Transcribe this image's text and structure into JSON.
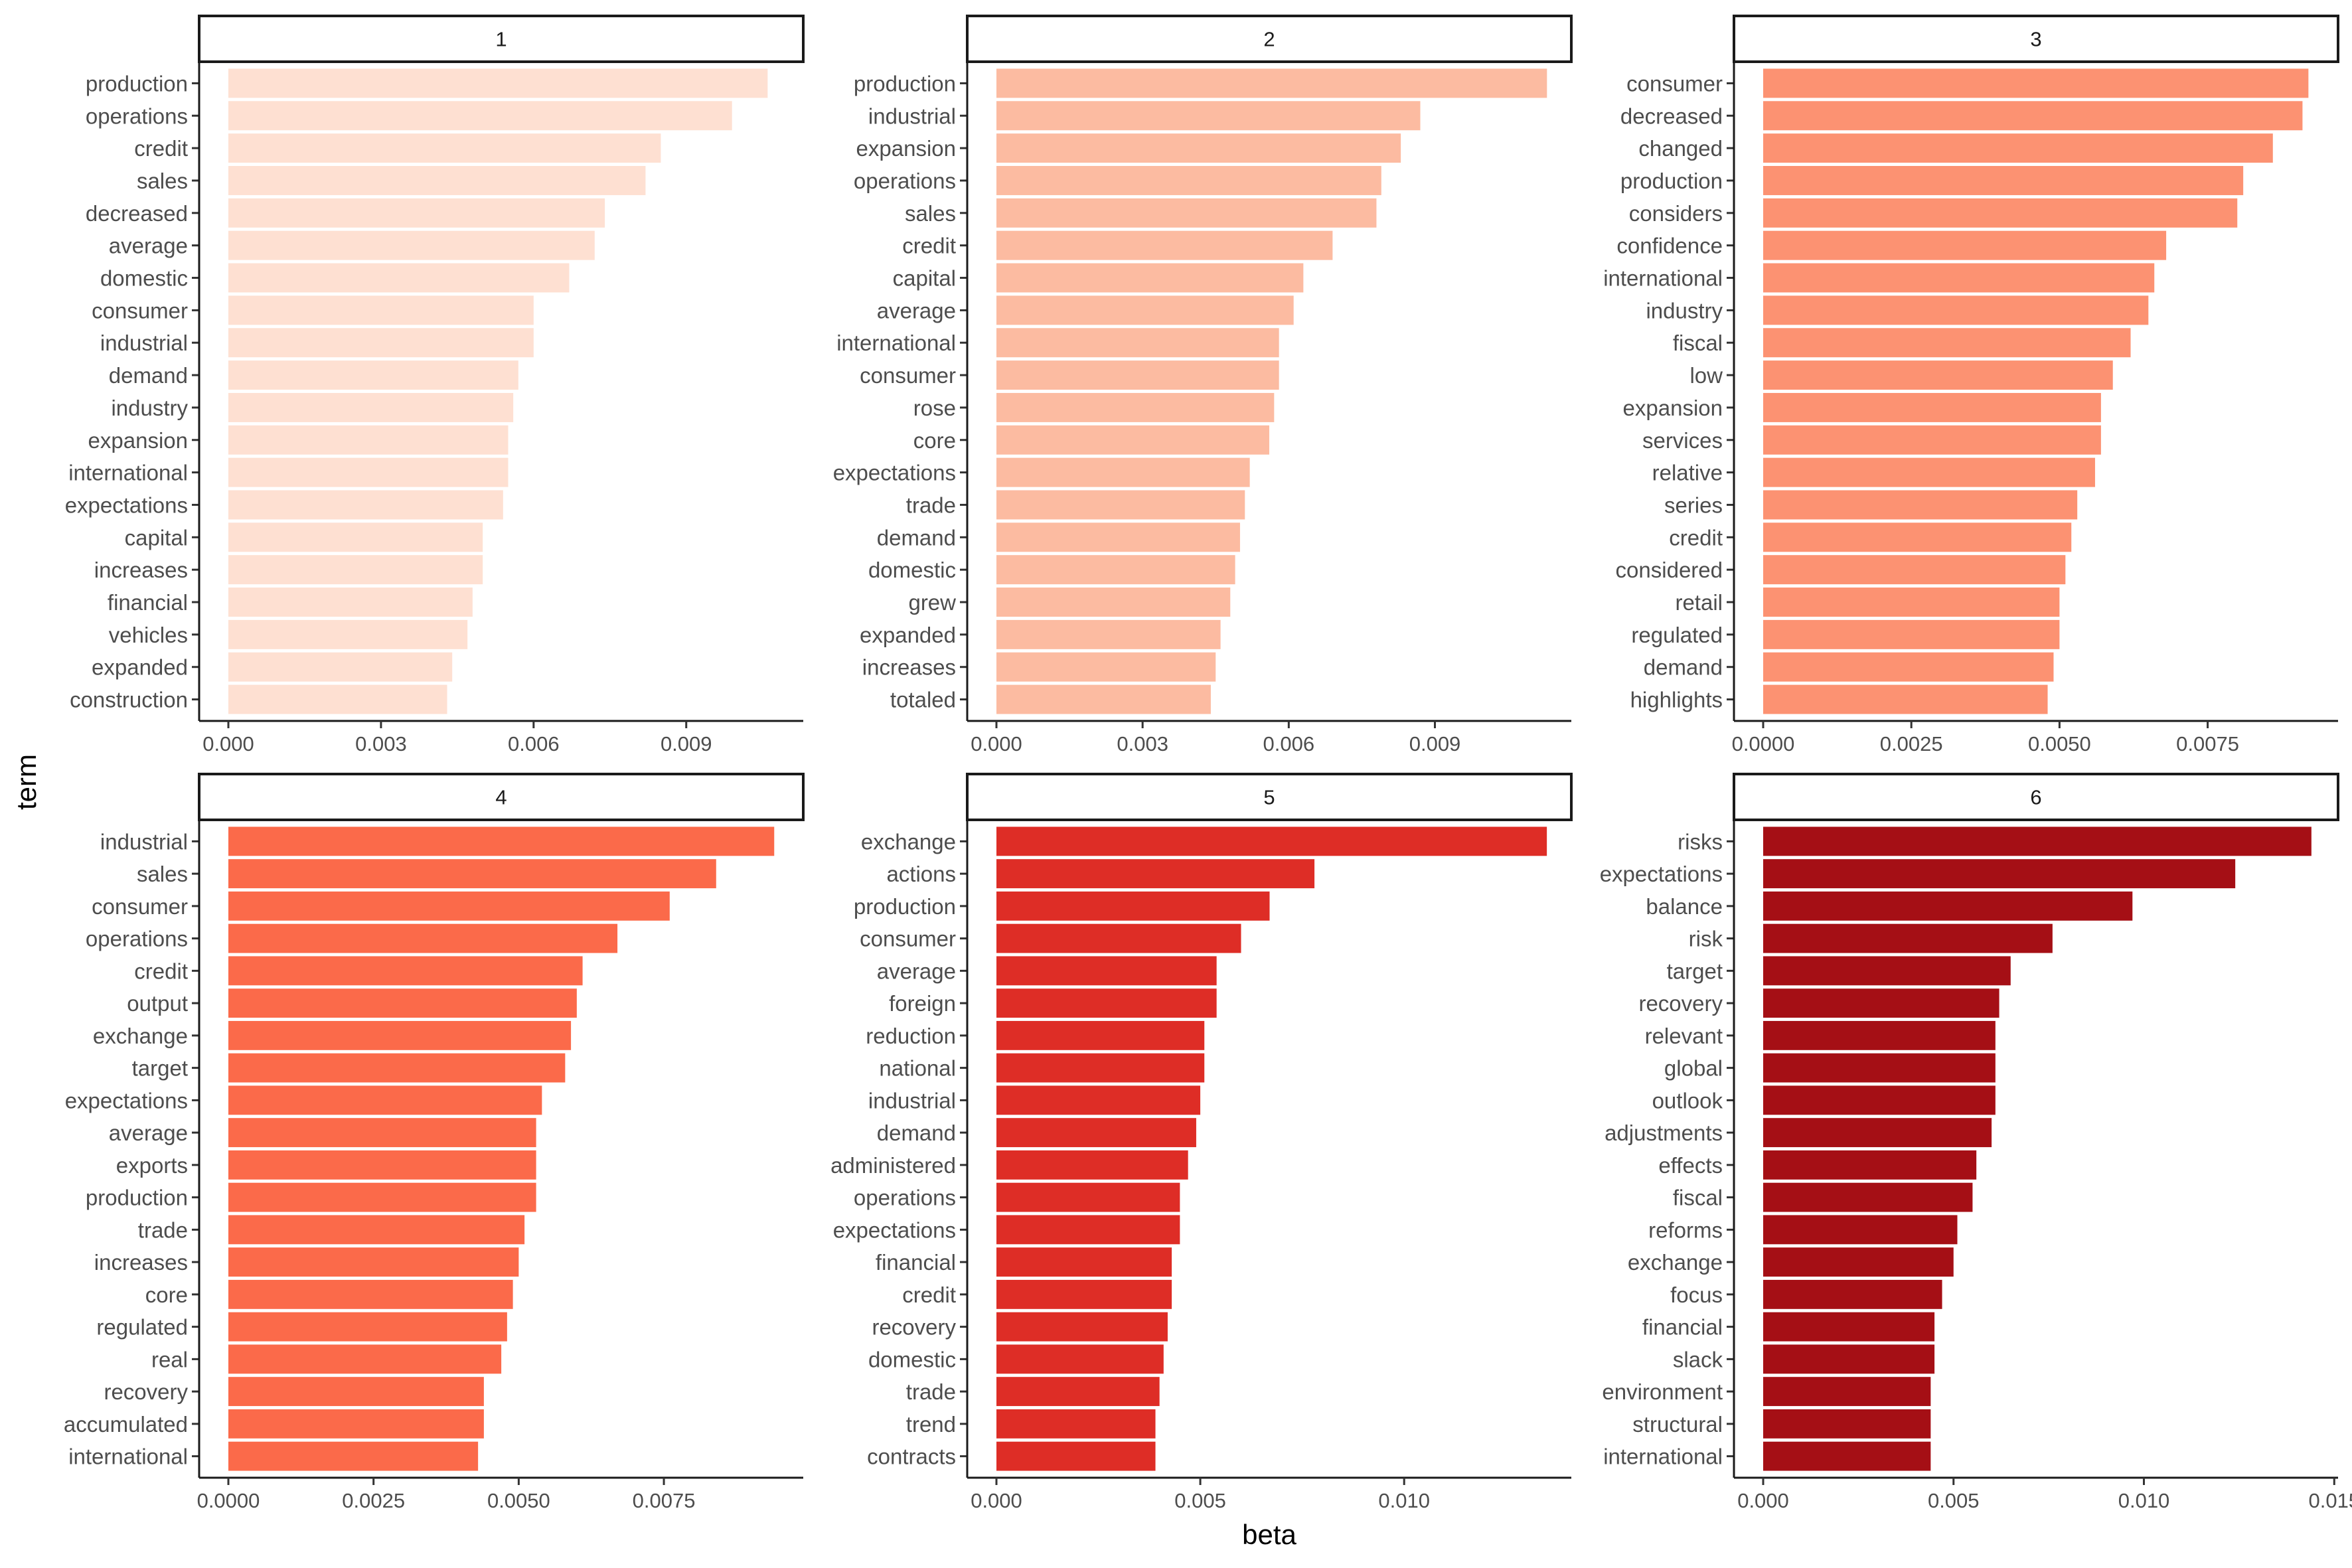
{
  "chart_data": {
    "type": "bar",
    "orientation": "horizontal",
    "facet": "small-multiples",
    "xlabel": "beta",
    "ylabel": "term",
    "grid": false,
    "panels": [
      {
        "name": "1",
        "color": "#FEE0D2",
        "xlim": [
          0,
          0.0113
        ],
        "ticks": [
          0,
          0.003,
          0.006,
          0.009
        ],
        "tick_labels": [
          "0.000",
          "0.003",
          "0.006",
          "0.009"
        ],
        "categories": [
          "production",
          "operations",
          "credit",
          "sales",
          "decreased",
          "average",
          "domestic",
          "consumer",
          "industrial",
          "demand",
          "industry",
          "expansion",
          "international",
          "expectations",
          "capital",
          "increases",
          "financial",
          "vehicles",
          "expanded",
          "construction"
        ],
        "values": [
          0.0106,
          0.0099,
          0.0085,
          0.0082,
          0.0074,
          0.0072,
          0.0067,
          0.006,
          0.006,
          0.0057,
          0.0056,
          0.0055,
          0.0055,
          0.0054,
          0.005,
          0.005,
          0.0048,
          0.0047,
          0.0044,
          0.0043
        ]
      },
      {
        "name": "2",
        "color": "#FCBBA1",
        "xlim": [
          0,
          0.0118
        ],
        "ticks": [
          0,
          0.003,
          0.006,
          0.009
        ],
        "tick_labels": [
          "0.000",
          "0.003",
          "0.006",
          "0.009"
        ],
        "categories": [
          "production",
          "industrial",
          "expansion",
          "operations",
          "sales",
          "credit",
          "capital",
          "average",
          "international",
          "consumer",
          "rose",
          "core",
          "expectations",
          "trade",
          "demand",
          "domestic",
          "grew",
          "expanded",
          "increases",
          "totaled"
        ],
        "values": [
          0.0113,
          0.0087,
          0.0083,
          0.0079,
          0.0078,
          0.0069,
          0.0063,
          0.0061,
          0.0058,
          0.0058,
          0.0057,
          0.0056,
          0.0052,
          0.0051,
          0.005,
          0.0049,
          0.0048,
          0.0046,
          0.0045,
          0.0044
        ]
      },
      {
        "name": "3",
        "color": "#FC9272",
        "xlim": [
          0,
          0.0097
        ],
        "ticks": [
          0,
          0.0025,
          0.005,
          0.0075
        ],
        "tick_labels": [
          "0.0000",
          "0.0025",
          "0.0050",
          "0.0075"
        ],
        "categories": [
          "consumer",
          "decreased",
          "changed",
          "production",
          "considers",
          "confidence",
          "international",
          "industry",
          "fiscal",
          "low",
          "expansion",
          "services",
          "relative",
          "series",
          "credit",
          "considered",
          "retail",
          "regulated",
          "demand",
          "highlights"
        ],
        "values": [
          0.0092,
          0.0091,
          0.0086,
          0.0081,
          0.008,
          0.0068,
          0.0066,
          0.0065,
          0.0062,
          0.0059,
          0.0057,
          0.0057,
          0.0056,
          0.0053,
          0.0052,
          0.0051,
          0.005,
          0.005,
          0.0049,
          0.0048
        ]
      },
      {
        "name": "4",
        "color": "#FB6A4A",
        "xlim": [
          0,
          0.0099
        ],
        "ticks": [
          0,
          0.0025,
          0.005,
          0.0075
        ],
        "tick_labels": [
          "0.0000",
          "0.0025",
          "0.0050",
          "0.0075"
        ],
        "categories": [
          "industrial",
          "sales",
          "consumer",
          "operations",
          "credit",
          "output",
          "exchange",
          "target",
          "expectations",
          "average",
          "exports",
          "production",
          "trade",
          "increases",
          "core",
          "regulated",
          "real",
          "recovery",
          "accumulated",
          "international"
        ],
        "values": [
          0.0094,
          0.0084,
          0.0076,
          0.0067,
          0.0061,
          0.006,
          0.0059,
          0.0058,
          0.0054,
          0.0053,
          0.0053,
          0.0053,
          0.0051,
          0.005,
          0.0049,
          0.0048,
          0.0047,
          0.0044,
          0.0044,
          0.0043
        ]
      },
      {
        "name": "5",
        "color": "#DE2D26",
        "xlim": [
          0,
          0.0141
        ],
        "ticks": [
          0,
          0.005,
          0.01
        ],
        "tick_labels": [
          "0.000",
          "0.005",
          "0.010"
        ],
        "categories": [
          "exchange",
          "actions",
          "production",
          "consumer",
          "average",
          "foreign",
          "reduction",
          "national",
          "industrial",
          "demand",
          "administered",
          "operations",
          "expectations",
          "financial",
          "credit",
          "recovery",
          "domestic",
          "trade",
          "trend",
          "contracts"
        ],
        "values": [
          0.0135,
          0.0078,
          0.0067,
          0.006,
          0.0054,
          0.0054,
          0.0051,
          0.0051,
          0.005,
          0.0049,
          0.0047,
          0.0045,
          0.0045,
          0.0043,
          0.0043,
          0.0042,
          0.0041,
          0.004,
          0.0039,
          0.0039
        ]
      },
      {
        "name": "6",
        "color": "#A50F15",
        "xlim": [
          0,
          0.0151
        ],
        "ticks": [
          0,
          0.005,
          0.01,
          0.015
        ],
        "tick_labels": [
          "0.000",
          "0.005",
          "0.010",
          "0.015"
        ],
        "categories": [
          "risks",
          "expectations",
          "balance",
          "risk",
          "target",
          "recovery",
          "relevant",
          "global",
          "outlook",
          "adjustments",
          "effects",
          "fiscal",
          "reforms",
          "exchange",
          "focus",
          "financial",
          "slack",
          "environment",
          "structural",
          "international"
        ],
        "values": [
          0.0144,
          0.0124,
          0.0097,
          0.0076,
          0.0065,
          0.0062,
          0.0061,
          0.0061,
          0.0061,
          0.006,
          0.0056,
          0.0055,
          0.0051,
          0.005,
          0.0047,
          0.0045,
          0.0045,
          0.0044,
          0.0044,
          0.0044
        ]
      }
    ]
  }
}
